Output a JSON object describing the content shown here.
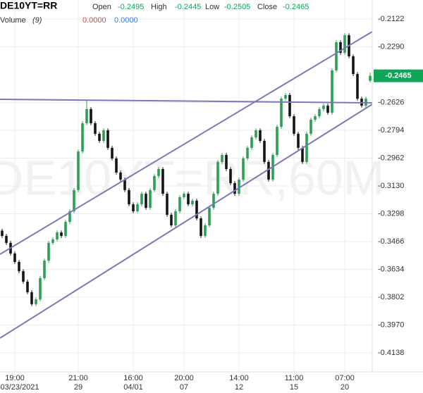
{
  "chart_data": {
    "type": "candlestick",
    "symbol": "DE10YT=RR",
    "watermark": "DE10YT=RR,60M",
    "ohlc_labels": [
      "Open",
      "High",
      "Low",
      "Close"
    ],
    "volume": {
      "title": "Volume",
      "period": "(9)",
      "values": [
        0,
        0
      ],
      "value_labels": [
        "0.0000",
        "0.0000"
      ],
      "colors": [
        "#e0443e",
        "#3a7bd5"
      ]
    },
    "up_color": "#2f9e58",
    "down_color": "#151515",
    "label_color": "#10a65a",
    "grid": true,
    "ylim": [
      -0.4253,
      -0.2007
    ],
    "yticks": [
      -0.2122,
      {
        "value": -0.229,
        "label": "-0.2290"
      },
      -0.2626,
      -0.2794,
      -0.2962,
      {
        "value": -0.313,
        "label": "-0.3130"
      },
      -0.3298,
      -0.3466,
      -0.3634,
      -0.3802,
      {
        "value": -0.397,
        "label": "-0.3970"
      },
      -0.4138
    ],
    "categories": [
      null,
      null,
      null,
      "19:00",
      null,
      null,
      null,
      null,
      null,
      null,
      null,
      null,
      null,
      null,
      null,
      null,
      null,
      null,
      "21:00",
      null,
      null,
      null,
      null,
      null,
      null,
      null,
      null,
      null,
      null,
      null,
      null,
      "16:00",
      null,
      null,
      null,
      null,
      null,
      null,
      null,
      null,
      null,
      null,
      null,
      "20:00",
      null,
      null,
      null,
      null,
      null,
      null,
      null,
      null,
      null,
      null,
      null,
      null,
      "14:00",
      null,
      null,
      null,
      null,
      null,
      null,
      null,
      null,
      null,
      null,
      null,
      null,
      "11:00",
      null,
      null,
      null,
      null,
      null,
      null,
      null,
      null,
      null,
      null,
      null,
      "07:00",
      null,
      null,
      null,
      null,
      null,
      null
    ],
    "dates": [
      null,
      null,
      null,
      "03/23/2021",
      null,
      null,
      null,
      null,
      null,
      null,
      null,
      null,
      null,
      null,
      null,
      null,
      null,
      null,
      "29",
      null,
      null,
      null,
      null,
      null,
      null,
      null,
      null,
      null,
      null,
      null,
      null,
      "04/01",
      null,
      null,
      null,
      null,
      null,
      null,
      null,
      null,
      null,
      null,
      null,
      "07",
      null,
      null,
      null,
      null,
      null,
      null,
      null,
      null,
      null,
      null,
      null,
      null,
      "12",
      null,
      null,
      null,
      null,
      null,
      null,
      null,
      null,
      null,
      null,
      null,
      null,
      "15",
      null,
      null,
      null,
      null,
      null,
      null,
      null,
      null,
      null,
      null,
      null,
      "20",
      null,
      null,
      null,
      null,
      null,
      null
    ],
    "open": [
      -0.34,
      -0.3432,
      -0.3474,
      -0.3538,
      -0.3589,
      -0.3645,
      -0.3708,
      -0.3772,
      -0.3844,
      -0.3815,
      -0.3687,
      -0.3581,
      -0.3474,
      -0.3453,
      -0.3411,
      -0.3432,
      -0.3347,
      -0.3283,
      -0.3155,
      -0.2922,
      -0.2751,
      -0.2666,
      -0.2751,
      -0.2815,
      -0.2858,
      -0.2794,
      -0.29,
      -0.2964,
      -0.3049,
      -0.3092,
      -0.3155,
      -0.3241,
      -0.3283,
      -0.3241,
      -0.3177,
      -0.3262,
      -0.3155,
      -0.307,
      -0.3028,
      -0.3177,
      -0.3304,
      -0.3368,
      -0.3283,
      -0.3198,
      -0.3177,
      -0.3241,
      -0.3219,
      -0.3326,
      -0.3432,
      -0.3368,
      -0.3262,
      -0.3177,
      -0.2985,
      -0.2943,
      -0.3028,
      -0.3113,
      -0.3177,
      -0.3092,
      -0.2964,
      -0.29,
      -0.2837,
      -0.2794,
      -0.2858,
      -0.2985,
      -0.3092,
      -0.2943,
      -0.2773,
      -0.2603,
      -0.2581,
      -0.2709,
      -0.2815,
      -0.29,
      -0.2985,
      -0.2815,
      -0.273,
      -0.2709,
      -0.2666,
      -0.2645,
      -0.2688,
      -0.2432,
      -0.2262,
      -0.2326,
      -0.222,
      -0.2347,
      -0.2454,
      -0.2603,
      -0.2645,
      -0.2495
    ],
    "high": [
      -0.3388,
      -0.342,
      -0.3462,
      -0.3526,
      -0.3577,
      -0.3633,
      -0.3696,
      -0.376,
      -0.3803,
      -0.3675,
      -0.3569,
      -0.3462,
      -0.3441,
      -0.3399,
      -0.3399,
      -0.3335,
      -0.3271,
      -0.3143,
      -0.291,
      -0.2739,
      -0.261,
      -0.2654,
      -0.2739,
      -0.2803,
      -0.2782,
      -0.2782,
      -0.2888,
      -0.2952,
      -0.3037,
      -0.308,
      -0.3143,
      -0.3229,
      -0.3229,
      -0.3165,
      -0.3165,
      -0.3143,
      -0.3058,
      -0.3016,
      -0.3016,
      -0.3165,
      -0.3292,
      -0.3271,
      -0.3186,
      -0.3165,
      -0.3165,
      -0.3207,
      -0.3207,
      -0.3314,
      -0.3356,
      -0.325,
      -0.3165,
      -0.2973,
      -0.2931,
      -0.2931,
      -0.3016,
      -0.3101,
      -0.308,
      -0.2952,
      -0.2888,
      -0.2825,
      -0.2782,
      -0.2782,
      -0.2846,
      -0.2973,
      -0.2931,
      -0.2761,
      -0.2591,
      -0.2569,
      -0.2569,
      -0.2697,
      -0.2803,
      -0.2888,
      -0.2803,
      -0.2718,
      -0.2697,
      -0.2654,
      -0.2633,
      -0.2633,
      -0.242,
      -0.225,
      -0.225,
      -0.2208,
      -0.2208,
      -0.2335,
      -0.2442,
      -0.2591,
      -0.2591,
      -0.2445
    ],
    "low": [
      -0.3444,
      -0.3486,
      -0.355,
      -0.3601,
      -0.3657,
      -0.372,
      -0.3784,
      -0.3856,
      -0.3856,
      -0.3827,
      -0.3699,
      -0.3593,
      -0.3486,
      -0.3465,
      -0.3444,
      -0.3444,
      -0.3359,
      -0.3295,
      -0.3167,
      -0.2934,
      -0.2763,
      -0.2763,
      -0.2827,
      -0.287,
      -0.287,
      -0.2912,
      -0.2976,
      -0.3061,
      -0.3104,
      -0.3167,
      -0.3253,
      -0.3295,
      -0.3295,
      -0.3253,
      -0.3274,
      -0.3274,
      -0.3167,
      -0.3082,
      -0.3189,
      -0.3316,
      -0.338,
      -0.338,
      -0.3295,
      -0.321,
      -0.3253,
      -0.3253,
      -0.3338,
      -0.3444,
      -0.3444,
      -0.338,
      -0.3274,
      -0.3189,
      -0.2997,
      -0.304,
      -0.3125,
      -0.3189,
      -0.3189,
      -0.3104,
      -0.2976,
      -0.2912,
      -0.2849,
      -0.287,
      -0.2997,
      -0.3104,
      -0.3104,
      -0.2955,
      -0.2785,
      -0.2615,
      -0.2721,
      -0.2827,
      -0.2912,
      -0.2997,
      -0.2997,
      -0.2827,
      -0.2742,
      -0.2721,
      -0.2678,
      -0.27,
      -0.27,
      -0.2444,
      -0.2338,
      -0.2338,
      -0.2359,
      -0.2466,
      -0.2615,
      -0.2657,
      -0.2657,
      -0.2505
    ],
    "close": [
      -0.3432,
      -0.3474,
      -0.3538,
      -0.3589,
      -0.3645,
      -0.3708,
      -0.3772,
      -0.3844,
      -0.3815,
      -0.3687,
      -0.3581,
      -0.3474,
      -0.3453,
      -0.3411,
      -0.3432,
      -0.3347,
      -0.3283,
      -0.3155,
      -0.2922,
      -0.2751,
      -0.2666,
      -0.2751,
      -0.2815,
      -0.2858,
      -0.2794,
      -0.29,
      -0.2964,
      -0.3049,
      -0.3092,
      -0.3155,
      -0.3241,
      -0.3283,
      -0.3241,
      -0.3177,
      -0.3262,
      -0.3155,
      -0.307,
      -0.3028,
      -0.3177,
      -0.3304,
      -0.3368,
      -0.3283,
      -0.3198,
      -0.3177,
      -0.3241,
      -0.3219,
      -0.3326,
      -0.3432,
      -0.3368,
      -0.3262,
      -0.3177,
      -0.2985,
      -0.2943,
      -0.3028,
      -0.3113,
      -0.3177,
      -0.3092,
      -0.2964,
      -0.29,
      -0.2837,
      -0.2794,
      -0.2858,
      -0.2985,
      -0.3092,
      -0.2943,
      -0.2773,
      -0.2603,
      -0.2581,
      -0.2709,
      -0.2815,
      -0.29,
      -0.2985,
      -0.2815,
      -0.273,
      -0.2709,
      -0.2666,
      -0.2645,
      -0.2688,
      -0.2432,
      -0.2262,
      -0.2326,
      -0.222,
      -0.2347,
      -0.2454,
      -0.2603,
      -0.2645,
      -0.2603,
      -0.2465
    ]
  }
}
